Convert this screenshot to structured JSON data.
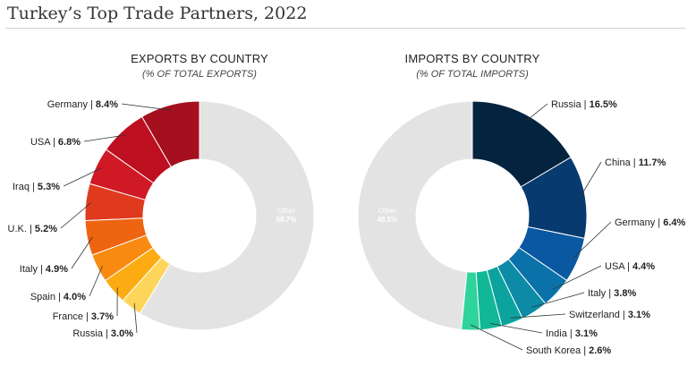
{
  "page": {
    "title": "Turkey’s Top Trade Partners, 2022"
  },
  "chart_data": [
    {
      "type": "pie",
      "title": "EXPORTS BY COUNTRY",
      "subtitle": "(% OF TOTAL EXPORTS)",
      "slices": [
        {
          "label": "Germany",
          "value_text": "8.4%",
          "value": 8.4,
          "color": "#a50f1e"
        },
        {
          "label": "USA",
          "value_text": "6.8%",
          "value": 6.8,
          "color": "#bd0f20"
        },
        {
          "label": "Iraq",
          "value_text": "5.3%",
          "value": 5.3,
          "color": "#cf1a26"
        },
        {
          "label": "U.K.",
          "value_text": "5.2%",
          "value": 5.2,
          "color": "#df3a1e"
        },
        {
          "label": "Italy",
          "value_text": "4.9%",
          "value": 4.9,
          "color": "#ee6410"
        },
        {
          "label": "Spain",
          "value_text": "4.0%",
          "value": 4.0,
          "color": "#f88a12"
        },
        {
          "label": "France",
          "value_text": "3.7%",
          "value": 3.7,
          "color": "#fcac12"
        },
        {
          "label": "Russia",
          "value_text": "3.0%",
          "value": 3.0,
          "color": "#fdd55a"
        }
      ],
      "other": {
        "label": "Other",
        "value_text": "58.7%",
        "value": 58.7,
        "color": "#e3e3e3"
      }
    },
    {
      "type": "pie",
      "title": "IMPORTS BY COUNTRY",
      "subtitle": "(% OF TOTAL IMPORTS)",
      "slices": [
        {
          "label": "Russia",
          "value_text": "16.5%",
          "value": 16.5,
          "color": "#04233f"
        },
        {
          "label": "China",
          "value_text": "11.7%",
          "value": 11.7,
          "color": "#073a6e"
        },
        {
          "label": "Germany",
          "value_text": "6.4%",
          "value": 6.4,
          "color": "#0a58a1"
        },
        {
          "label": "USA",
          "value_text": "4.4%",
          "value": 4.4,
          "color": "#0a72a8"
        },
        {
          "label": "Italy",
          "value_text": "3.8%",
          "value": 3.8,
          "color": "#0c8aa6"
        },
        {
          "label": "Switzerland",
          "value_text": "3.1%",
          "value": 3.1,
          "color": "#0ca39e"
        },
        {
          "label": "India",
          "value_text": "3.1%",
          "value": 3.1,
          "color": "#11b897"
        },
        {
          "label": "South Korea",
          "value_text": "2.6%",
          "value": 2.6,
          "color": "#2fd39c"
        }
      ],
      "other": {
        "label": "Other",
        "value_text": "48.5%",
        "value": 48.5,
        "color": "#e3e3e3"
      }
    }
  ]
}
